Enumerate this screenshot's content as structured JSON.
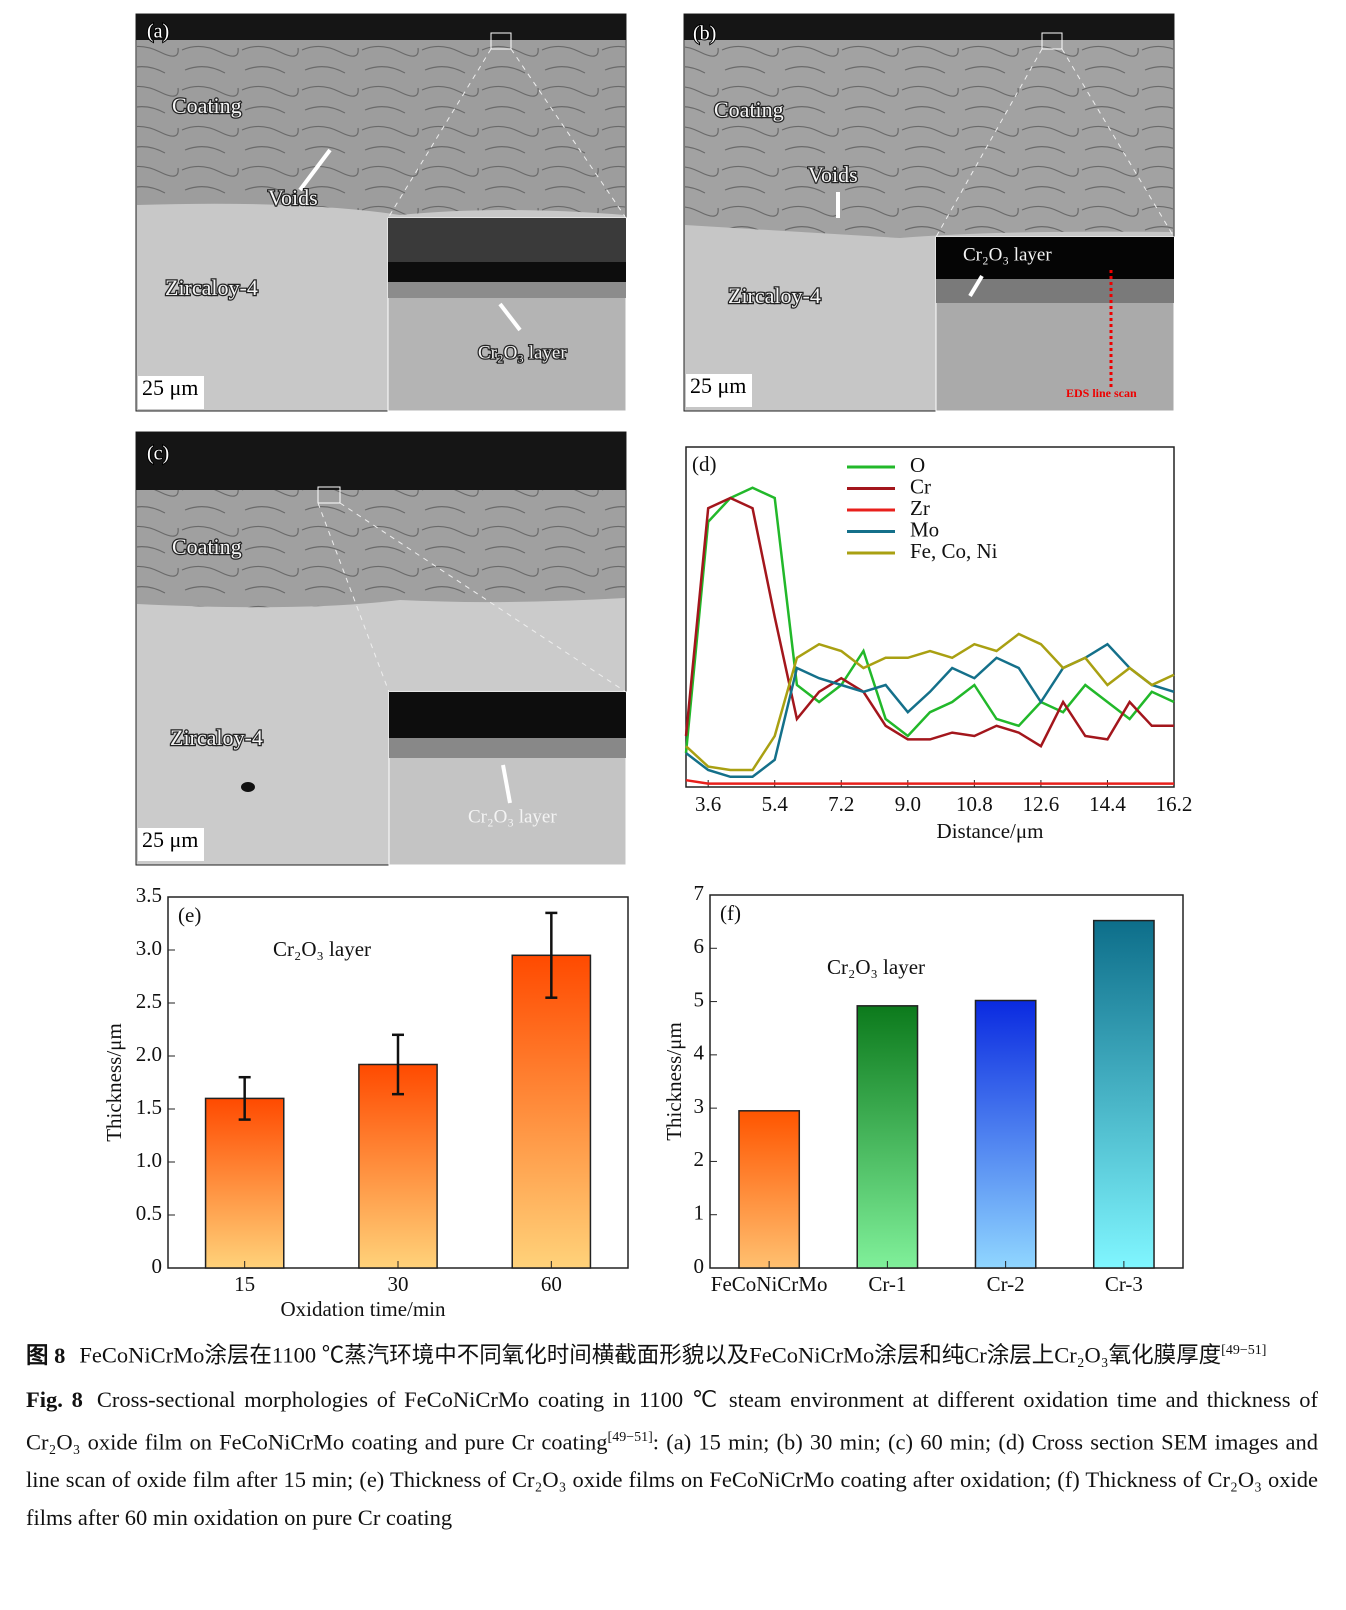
{
  "panels": [
    {
      "label": "(a)",
      "coating": "Coating",
      "voids": "Voids",
      "substrate": "Zircaloy-4",
      "inset": "Cr₂O₃ layer",
      "scale": "25 μm"
    },
    {
      "label": "(b)",
      "coating": "Coating",
      "voids": "Voids",
      "substrate": "Zircaloy-4",
      "inset": "Cr₂O₃ layer",
      "scan": "EDS line scan",
      "scale": "25 μm"
    },
    {
      "label": "(c)",
      "coating": "Coating",
      "substrate": "Zircaloy-4",
      "inset": "Cr₂O₃ layer",
      "scale": "25 μm"
    }
  ],
  "chart_data": [
    {
      "type": "line",
      "panel_label": "(d)",
      "xlabel": "Distance/μm",
      "x": [
        3.0,
        3.6,
        4.2,
        4.8,
        5.4,
        6.0,
        6.6,
        7.2,
        7.8,
        8.4,
        9.0,
        9.6,
        10.2,
        10.8,
        11.4,
        12.0,
        12.6,
        13.2,
        13.8,
        14.4,
        15.0,
        15.6,
        16.2
      ],
      "series": [
        {
          "name": "O",
          "color": "#22b82a",
          "values": [
            10,
            78,
            85,
            88,
            85,
            30,
            25,
            30,
            40,
            20,
            15,
            22,
            25,
            30,
            20,
            18,
            25,
            22,
            30,
            25,
            20,
            28,
            25
          ]
        },
        {
          "name": "Cr",
          "color": "#a3161c",
          "values": [
            15,
            82,
            85,
            82,
            50,
            20,
            28,
            32,
            28,
            18,
            14,
            14,
            16,
            15,
            18,
            16,
            12,
            25,
            15,
            14,
            25,
            18,
            18
          ]
        },
        {
          "name": "Zr",
          "color": "#e8201c",
          "values": [
            2,
            1,
            1,
            1,
            1,
            1,
            1,
            1,
            1,
            1,
            1,
            1,
            1,
            1,
            1,
            1,
            1,
            1,
            1,
            1,
            1,
            1,
            1
          ]
        },
        {
          "name": "Mo",
          "color": "#14708a",
          "values": [
            10,
            5,
            3,
            3,
            8,
            35,
            32,
            30,
            28,
            30,
            22,
            28,
            35,
            32,
            38,
            35,
            25,
            35,
            38,
            42,
            35,
            30,
            28
          ]
        },
        {
          "name": "Fe, Co, Ni",
          "color": "#a9a012",
          "values": [
            12,
            6,
            5,
            5,
            15,
            38,
            42,
            40,
            35,
            38,
            38,
            40,
            38,
            42,
            40,
            45,
            42,
            35,
            38,
            30,
            35,
            30,
            33
          ]
        }
      ],
      "xlim": [
        3.0,
        16.2
      ],
      "ylim": [
        0,
        100
      ],
      "xticks": [
        3.6,
        5.4,
        7.2,
        {
          "value": 9,
          "label": "9.0"
        },
        10.8,
        12.6,
        14.4,
        16.2
      ]
    },
    {
      "type": "bar",
      "panel_label": "(e)",
      "annotation": "Cr₂O₃ layer",
      "xlabel": "Oxidation time/min",
      "ylabel": "Thickness/μm",
      "categories": [
        "15",
        "30",
        "60"
      ],
      "values": [
        1.6,
        1.92,
        2.95
      ],
      "errors": [
        0.2,
        0.28,
        0.4
      ],
      "color": [
        "#ff4a00",
        "#ffd27a"
      ],
      "ylim": [
        0,
        3.5
      ],
      "yticks": [
        0,
        0.5,
        {
          "value": 1,
          "label": "1.0"
        },
        1.5,
        {
          "value": 2,
          "label": "2.0"
        },
        2.5,
        {
          "value": 3,
          "label": "3.0"
        },
        3.5
      ]
    },
    {
      "type": "bar",
      "panel_label": "(f)",
      "annotation": "Cr₂O₃ layer",
      "ylabel": "Thickness/μm",
      "categories": [
        "FeCoNiCrMo",
        "Cr-1",
        "Cr-2",
        "Cr-3"
      ],
      "values": [
        2.95,
        4.92,
        5.02,
        6.52
      ],
      "colors": [
        [
          "#ff5500",
          "#ffc070"
        ],
        [
          "#0c7a1c",
          "#80f09a"
        ],
        [
          "#0a2ae0",
          "#90d6ff"
        ],
        [
          "#0d6e8a",
          "#80f6ff"
        ]
      ],
      "ylim": [
        0,
        7
      ],
      "yticks": [
        0,
        1,
        2,
        3,
        4,
        5,
        6,
        7
      ]
    }
  ],
  "caption": {
    "cn_label": "图 8",
    "cn_text": "FeCoNiCrMo涂层在1100 ℃蒸汽环境中不同氧化时间横截面形貌以及FeCoNiCrMo涂层和纯Cr涂层上Cr₂O₃氧化膜厚度",
    "cn_ref": "[49−51]",
    "en_label": "Fig. 8",
    "en_text": "Cross-sectional morphologies of FeCoNiCrMo coating in 1100 ℃ steam environment at different oxidation time and thickness of Cr₂O₃ oxide film on FeCoNiCrMo coating and pure Cr coating",
    "en_ref": "[49−51]",
    "en_text2": ": (a) 15 min; (b) 30 min; (c) 60 min; (d) Cross section SEM images and line scan of oxide film after 15 min; (e) Thickness of Cr₂O₃ oxide films on FeCoNiCrMo coating after oxidation; (f) Thickness of Cr₂O₃ oxide films after 60 min oxidation on pure Cr coating"
  }
}
